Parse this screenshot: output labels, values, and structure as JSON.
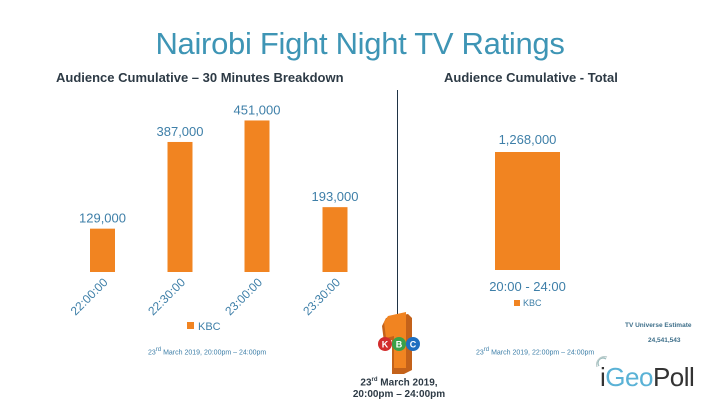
{
  "title": "Nairobi Fight Night TV Ratings",
  "colors": {
    "bar": "#f18421",
    "label": "#3e7fa8",
    "title": "#3e95b5",
    "heading": "#2d3a45"
  },
  "chart_data": [
    {
      "type": "bar",
      "title": "Audience Cumulative – 30 Minutes Breakdown",
      "categories": [
        "22:00:00",
        "22:30:00",
        "23:00:00",
        "23:30:00"
      ],
      "values": [
        129000,
        387000,
        451000,
        193000
      ],
      "value_labels": [
        "129,000",
        "387,000",
        "451,000",
        "193,000"
      ],
      "series": [
        {
          "name": "KBC",
          "values": [
            129000,
            387000,
            451000,
            193000
          ]
        }
      ],
      "legend": {
        "entries": [
          "KBC"
        ],
        "position": "bottom"
      },
      "ylim": [
        0,
        500000
      ],
      "grid": false,
      "note": "23rd March 2019, 20:00pm – 24:00pm"
    },
    {
      "type": "bar",
      "title": "Audience Cumulative - Total",
      "categories": [
        "20:00  - 24:00"
      ],
      "values": [
        1268000
      ],
      "value_labels": [
        "1,268,000"
      ],
      "series": [
        {
          "name": "KBC",
          "values": [
            1268000
          ]
        }
      ],
      "legend": {
        "entries": [
          "KBC"
        ],
        "position": "bottom"
      },
      "ylim": [
        0,
        1400000
      ],
      "grid": false,
      "note": "23rd March 2019, 22:00pm – 24:00pm"
    }
  ],
  "notes": {
    "left_day": "23",
    "left_sup": "rd",
    "left_rest": " March 2019, 20:00pm – 24:00pm",
    "right_day": "23",
    "right_sup": "rd",
    "right_rest": " March 2019, 22:00pm – 24:00pm"
  },
  "bottom_date": {
    "day": "23",
    "sup": "rd",
    "line1_rest": " March 2019,",
    "line2": "20:00pm – 24:00pm"
  },
  "tv_universe": {
    "label": "TV Universe Estimate",
    "value": "24,541,543"
  },
  "logo": {
    "kbc_letters": [
      "K",
      "B",
      "C"
    ],
    "brand_geo": "Geo",
    "brand_poll": "Poll",
    "brand_i": "i"
  }
}
